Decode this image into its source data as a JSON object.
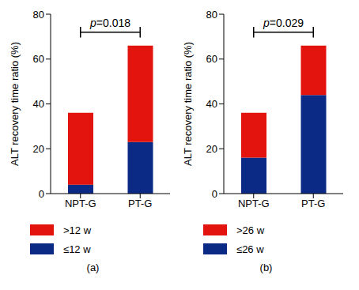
{
  "chart_data": [
    {
      "type": "bar",
      "title": "(a)",
      "annotation": "p=0.018",
      "ylabel": "ALT recovery time ratio (%)",
      "categories": [
        "NPT-G",
        "PT-G"
      ],
      "series": [
        {
          "name": "≤12 w",
          "color": "#0a2a86",
          "values": [
            4,
            23
          ]
        },
        {
          "name": ">12 w",
          "color": "#e3140e",
          "values": [
            32,
            43
          ]
        }
      ],
      "stacked": true,
      "legend": "bottom",
      "ylim": [
        0,
        80
      ],
      "yticks": [
        0,
        20,
        40,
        60,
        80
      ]
    },
    {
      "type": "bar",
      "title": "(b)",
      "annotation": "p=0.029",
      "ylabel": "ALT recovery time ratio (%)",
      "categories": [
        "NPT-G",
        "PT-G"
      ],
      "series": [
        {
          "name": "≤26 w",
          "color": "#0a2a86",
          "values": [
            16,
            44
          ]
        },
        {
          "name": ">26 w",
          "color": "#e3140e",
          "values": [
            20,
            22
          ]
        }
      ],
      "stacked": true,
      "legend": "bottom",
      "ylim": [
        0,
        80
      ],
      "yticks": [
        0,
        20,
        40,
        60,
        80
      ]
    }
  ]
}
